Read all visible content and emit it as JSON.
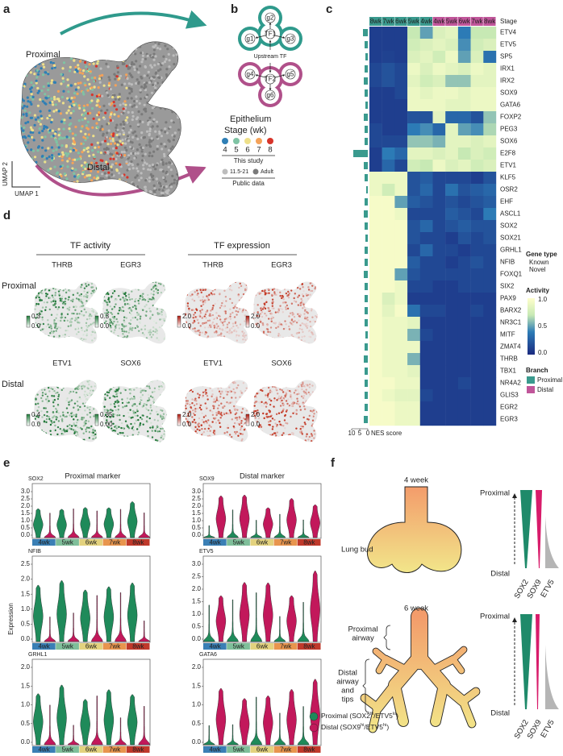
{
  "panel_a": {
    "label": "a",
    "proximal": "Proximal",
    "distal": "Distal",
    "umap2": "UMAP 2",
    "umap1": "UMAP 1",
    "legend": {
      "title1": "Epithelium",
      "title2": "Stage (wk)",
      "stages": [
        {
          "label": "4",
          "color": "#2f7fb5"
        },
        {
          "label": "5",
          "color": "#7fc3a4"
        },
        {
          "label": "6",
          "color": "#eee08a"
        },
        {
          "label": "7",
          "color": "#f4a259"
        },
        {
          "label": "8",
          "color": "#d7342a"
        }
      ],
      "this_study": "This study",
      "public": [
        {
          "label": "11.5-21",
          "color": "#bdbdbd"
        },
        {
          "label": "Adult",
          "color": "#7a7a7a"
        }
      ],
      "public_data": "Public data"
    }
  },
  "panel_b": {
    "label": "b",
    "tf1": "TF1",
    "tf2": "TF2",
    "genes": [
      "g1",
      "g2",
      "g3",
      "g4",
      "g5",
      "g6"
    ],
    "upstream": "Upstream TF"
  },
  "panel_c": {
    "label": "c",
    "stage": "Stage",
    "columns": [
      {
        "label": "8wk",
        "branch": 0
      },
      {
        "label": "7wk",
        "branch": 0
      },
      {
        "label": "6wk",
        "branch": 0
      },
      {
        "label": "5wk",
        "branch": 0
      },
      {
        "label": "4wk",
        "branch": 0
      },
      {
        "label": "4wk",
        "branch": 1
      },
      {
        "label": "5wk",
        "branch": 1
      },
      {
        "label": "6wk",
        "branch": 1
      },
      {
        "label": "7wk",
        "branch": 1
      },
      {
        "label": "8wk",
        "branch": 1
      }
    ],
    "genes": [
      {
        "name": "ETV4",
        "novel": false,
        "nes": 3,
        "activity": [
          0.1,
          0.1,
          0.1,
          0.7,
          0.5,
          0.8,
          0.85,
          0.4,
          0.7,
          0.7
        ]
      },
      {
        "name": "ETV5",
        "novel": false,
        "nes": 2,
        "activity": [
          0.1,
          0.1,
          0.1,
          0.75,
          0.8,
          0.85,
          0.8,
          0.45,
          0.75,
          0.8
        ]
      },
      {
        "name": "SP5",
        "novel": false,
        "nes": 1.5,
        "activity": [
          0.1,
          0.12,
          0.1,
          0.8,
          0.85,
          0.75,
          0.9,
          0.5,
          0.8,
          0.35
        ]
      },
      {
        "name": "IRX1",
        "novel": false,
        "nes": 2,
        "activity": [
          0.15,
          0.2,
          0.15,
          0.9,
          0.8,
          0.9,
          0.85,
          0.8,
          0.9,
          0.85
        ]
      },
      {
        "name": "IRX2",
        "novel": false,
        "nes": 2.5,
        "activity": [
          0.15,
          0.2,
          0.15,
          0.85,
          0.75,
          0.8,
          0.6,
          0.6,
          0.85,
          0.85
        ]
      },
      {
        "name": "SOX9",
        "novel": false,
        "nes": 2,
        "activity": [
          0.1,
          0.1,
          0.15,
          0.9,
          0.85,
          0.9,
          0.9,
          0.85,
          0.9,
          0.9
        ]
      },
      {
        "name": "GATA6",
        "novel": false,
        "nes": 1.5,
        "activity": [
          0.1,
          0.1,
          0.1,
          0.9,
          0.9,
          0.9,
          0.85,
          0.85,
          0.9,
          0.9
        ]
      },
      {
        "name": "FOXP2",
        "novel": false,
        "nes": 2.5,
        "activity": [
          0.1,
          0.1,
          0.1,
          0.2,
          0.2,
          0.85,
          0.3,
          0.3,
          0.2,
          0.6
        ]
      },
      {
        "name": "PEG3",
        "novel": true,
        "nes": 2,
        "activity": [
          0.15,
          0.1,
          0.1,
          0.4,
          0.45,
          0.3,
          0.85,
          0.5,
          0.45,
          0.65
        ]
      },
      {
        "name": "SOX6",
        "novel": true,
        "nes": 2,
        "activity": [
          0.15,
          0.15,
          0.15,
          0.6,
          0.6,
          0.55,
          0.85,
          0.85,
          0.8,
          0.85
        ]
      },
      {
        "name": "E2F8",
        "novel": true,
        "nes": 9,
        "activity": [
          0.1,
          0.4,
          0.3,
          0.85,
          0.85,
          0.8,
          0.85,
          0.7,
          0.8,
          0.75
        ]
      },
      {
        "name": "ETV1",
        "novel": true,
        "nes": 2.5,
        "activity": [
          0.1,
          0.3,
          0.15,
          0.75,
          0.7,
          0.9,
          0.8,
          0.85,
          0.75,
          0.8
        ]
      },
      {
        "name": "KLF5",
        "novel": false,
        "nes": 2,
        "activity": [
          0.9,
          0.9,
          0.9,
          0.2,
          0.25,
          0.15,
          0.15,
          0.15,
          0.1,
          0.2
        ]
      },
      {
        "name": "OSR2",
        "novel": false,
        "nes": 1,
        "activity": [
          0.9,
          0.75,
          0.9,
          0.2,
          0.3,
          0.15,
          0.35,
          0.2,
          0.25,
          0.3
        ]
      },
      {
        "name": "EHF",
        "novel": false,
        "nes": 2,
        "activity": [
          0.95,
          0.95,
          0.5,
          0.25,
          0.2,
          0.15,
          0.2,
          0.15,
          0.2,
          0.25
        ]
      },
      {
        "name": "ASCL1",
        "novel": false,
        "nes": 2.5,
        "activity": [
          0.95,
          0.95,
          0.9,
          0.15,
          0.15,
          0.15,
          0.25,
          0.2,
          0.15,
          0.4
        ]
      },
      {
        "name": "SOX2",
        "novel": false,
        "nes": 2,
        "activity": [
          0.95,
          0.95,
          0.95,
          0.2,
          0.3,
          0.15,
          0.2,
          0.25,
          0.2,
          0.2
        ]
      },
      {
        "name": "SOX21",
        "novel": false,
        "nes": 1.5,
        "activity": [
          0.95,
          0.95,
          0.95,
          0.2,
          0.15,
          0.15,
          0.1,
          0.2,
          0.15,
          0.2
        ]
      },
      {
        "name": "GRHL1",
        "novel": false,
        "nes": 2,
        "activity": [
          0.95,
          0.95,
          0.95,
          0.15,
          0.3,
          0.15,
          0.15,
          0.1,
          0.15,
          0.15
        ]
      },
      {
        "name": "NFIB",
        "novel": false,
        "nes": 2,
        "activity": [
          0.95,
          0.95,
          0.95,
          0.25,
          0.15,
          0.15,
          0.1,
          0.15,
          0.2,
          0.15
        ]
      },
      {
        "name": "FOXQ1",
        "novel": false,
        "nes": 2.5,
        "activity": [
          0.95,
          0.95,
          0.5,
          0.2,
          0.15,
          0.15,
          0.15,
          0.15,
          0.15,
          0.15
        ]
      },
      {
        "name": "SIX2",
        "novel": false,
        "nes": 2,
        "activity": [
          0.95,
          0.95,
          0.9,
          0.15,
          0.15,
          0.1,
          0.1,
          0.15,
          0.15,
          0.15
        ]
      },
      {
        "name": "PAX9",
        "novel": false,
        "nes": 2,
        "activity": [
          0.95,
          0.8,
          0.9,
          0.1,
          0.1,
          0.1,
          0.1,
          0.1,
          0.1,
          0.1
        ]
      },
      {
        "name": "BARX2",
        "novel": false,
        "nes": 2,
        "activity": [
          0.95,
          0.85,
          0.95,
          0.35,
          0.15,
          0.15,
          0.1,
          0.1,
          0.15,
          0.1
        ]
      },
      {
        "name": "NR3C1",
        "novel": true,
        "nes": 2,
        "activity": [
          0.95,
          0.9,
          0.9,
          0.85,
          0.1,
          0.1,
          0.1,
          0.1,
          0.1,
          0.1
        ]
      },
      {
        "name": "MITF",
        "novel": true,
        "nes": 1.5,
        "activity": [
          0.95,
          0.9,
          0.9,
          0.55,
          0.15,
          0.1,
          0.1,
          0.1,
          0.1,
          0.1
        ]
      },
      {
        "name": "ZMAT4",
        "novel": true,
        "nes": 2,
        "activity": [
          0.95,
          0.9,
          0.9,
          0.9,
          0.1,
          0.1,
          0.1,
          0.1,
          0.1,
          0.1
        ]
      },
      {
        "name": "THRB",
        "novel": true,
        "nes": 2.5,
        "activity": [
          0.95,
          0.9,
          0.9,
          0.55,
          0.1,
          0.1,
          0.1,
          0.1,
          0.1,
          0.1
        ]
      },
      {
        "name": "TBX1",
        "novel": true,
        "nes": 2,
        "activity": [
          0.95,
          0.9,
          0.9,
          0.85,
          0.1,
          0.1,
          0.1,
          0.1,
          0.1,
          0.1
        ]
      },
      {
        "name": "NR4A2",
        "novel": true,
        "nes": 2,
        "activity": [
          0.95,
          0.95,
          0.9,
          0.9,
          0.1,
          0.1,
          0.1,
          0.15,
          0.1,
          0.1
        ]
      },
      {
        "name": "GLIS3",
        "novel": true,
        "nes": 2,
        "activity": [
          0.95,
          0.9,
          0.85,
          0.85,
          0.15,
          0.1,
          0.1,
          0.1,
          0.1,
          0.1
        ]
      },
      {
        "name": "EGR2",
        "novel": true,
        "nes": 2,
        "activity": [
          0.95,
          0.95,
          0.9,
          0.9,
          0.1,
          0.1,
          0.1,
          0.1,
          0.1,
          0.1
        ]
      },
      {
        "name": "EGR3",
        "novel": true,
        "nes": 2.5,
        "activity": [
          0.95,
          0.95,
          0.9,
          0.9,
          0.1,
          0.1,
          0.1,
          0.1,
          0.1,
          0.1
        ]
      }
    ],
    "nes_ticks": [
      10,
      5,
      0
    ],
    "nes_label": "NES score",
    "nes_color": "#3a9a8e",
    "gene_type": "Gene type",
    "known": "Known",
    "novel": "Novel",
    "novel_color": "#e0352b",
    "activity": "Activity",
    "activity_ticks": [
      "1.0",
      "0.5",
      "0.0"
    ],
    "branch": "Branch",
    "branches": [
      {
        "name": "Proximal",
        "color": "#3a9a8e"
      },
      {
        "name": "Distal",
        "color": "#c0569a"
      }
    ]
  },
  "panel_d": {
    "label": "d",
    "activity_title": "TF activity",
    "expression_title": "TF expression",
    "rows": [
      {
        "name": "Proximal",
        "color": "#3a9a8e",
        "plots": [
          {
            "gene": "THRB",
            "max": "0.3",
            "min": "0.0"
          },
          {
            "gene": "EGR3",
            "max": "0.3",
            "min": "0.0"
          },
          {
            "gene": "THRB",
            "max": "2.0",
            "min": "0.0"
          },
          {
            "gene": "EGR3",
            "max": "2.0",
            "min": "0.0"
          }
        ]
      },
      {
        "name": "Distal",
        "color": "#b0508a",
        "plots": [
          {
            "gene": "ETV1",
            "max": "0.4",
            "min": "0.0"
          },
          {
            "gene": "SOX6",
            "max": "0.35",
            "min": "0.00"
          },
          {
            "gene": "ETV1",
            "max": "2.0",
            "min": "0.0"
          },
          {
            "gene": "SOX6",
            "max": "2.0",
            "min": "0.0"
          }
        ]
      }
    ]
  },
  "panel_e": {
    "label": "e",
    "proximal_title": "Proximal marker",
    "distal_title": "Distal marker",
    "ylabel": "Expression",
    "stages": [
      {
        "label": "4wk",
        "color": "#3a7fb5"
      },
      {
        "label": "5wk",
        "color": "#7fbf9a"
      },
      {
        "label": "6wk",
        "color": "#e3d27e"
      },
      {
        "label": "7wk",
        "color": "#e8954e"
      },
      {
        "label": "8wk",
        "color": "#c0392b"
      }
    ],
    "plots": [
      {
        "gene": "SOX2",
        "yticks": [
          "0.0",
          "0.5",
          "1.0",
          "1.5",
          "2.0",
          "2.5",
          "3.0"
        ]
      },
      {
        "gene": "SOX9",
        "yticks": [
          "0.0",
          "0.5",
          "1.0",
          "1.5",
          "2.0",
          "2.5",
          "3.0"
        ]
      },
      {
        "gene": "NFIB",
        "yticks": [
          "0.0",
          "0.5",
          "1.0",
          "1.5",
          "2.0",
          "2.5"
        ]
      },
      {
        "gene": "ETV5",
        "yticks": [
          "0.0",
          "0.5",
          "1.0",
          "1.5",
          "2.0",
          "2.5",
          "3.0"
        ]
      },
      {
        "gene": "GRHL1",
        "yticks": [
          "0.0",
          "0.5",
          "1.0",
          "1.5",
          "2.0"
        ]
      },
      {
        "gene": "GATA6",
        "yticks": [
          "0.0",
          "0.5",
          "1.0",
          "1.5",
          "2.0"
        ]
      }
    ],
    "legend": [
      {
        "color": "#1f8a5a",
        "segments": [
          "Proximal (SOX2",
          "hi",
          "/ETV5",
          "lo",
          ")"
        ]
      },
      {
        "color": "#c2185b",
        "segments": [
          "Distal (SOX9",
          "hi",
          "/ETV5",
          "hi",
          ")"
        ]
      }
    ]
  },
  "panel_f": {
    "label": "f",
    "week4": "4 week",
    "lung_bud": "Lung bud",
    "week6": "6 week",
    "proximal_airway": [
      "Proximal",
      "airway"
    ],
    "distal_airway": [
      "Distal",
      "airway",
      "and",
      "tips"
    ],
    "diagrams": [
      {
        "proximal": "Proximal",
        "distal": "Distal",
        "markers": [
          "SOX2",
          "SOX9",
          "ETV5"
        ]
      },
      {
        "proximal": "Proximal",
        "distal": "Distal",
        "markers": [
          "SOX2",
          "SOX9",
          "ETV5"
        ]
      }
    ]
  }
}
